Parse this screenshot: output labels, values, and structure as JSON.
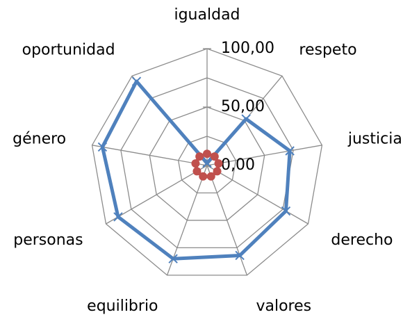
{
  "chart_data": {
    "type": "radar",
    "categories": [
      "igualdad",
      "respeto",
      "justicia",
      "derecho",
      "valores",
      "equilibrio",
      "personas",
      "género",
      "oportunidad"
    ],
    "series": [
      {
        "color": "#4f81bd",
        "values": [
          2,
          52,
          72,
          78,
          82,
          85,
          88,
          91,
          94
        ]
      },
      {
        "color": "#c0504d",
        "values": [
          10,
          10,
          10,
          10,
          10,
          10,
          10,
          10,
          10
        ]
      }
    ],
    "ylim": [
      0,
      100
    ],
    "yticks": [
      {
        "value": 0,
        "label": "0,00"
      },
      {
        "value": 50,
        "label": "50,00"
      },
      {
        "value": 100,
        "label": "100,00"
      }
    ],
    "minor_yticks": [
      25,
      75
    ],
    "grid": true
  }
}
